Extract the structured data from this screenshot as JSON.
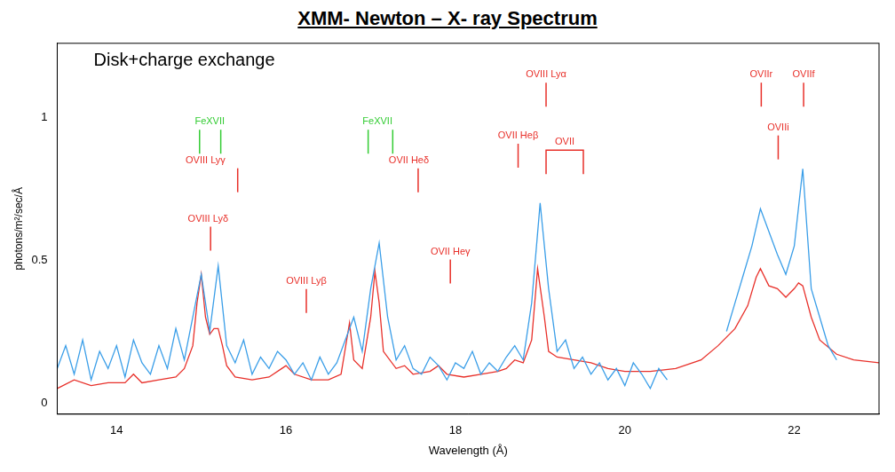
{
  "chart_data": {
    "type": "line",
    "title": "XMM- Newton – X- ray Spectrum",
    "x_label": "Wavelength (Å)",
    "y_label": "photons/m²/sec/Å",
    "xlim": [
      13.3,
      23.0
    ],
    "xticks": [
      14,
      16,
      18,
      20,
      22
    ],
    "ylim": [
      -0.04,
      1.26
    ],
    "yticks": [
      0,
      0.5,
      1
    ],
    "grid": false,
    "series": [
      {
        "color": "#3a9ee8",
        "marker": "none",
        "line_style": "solid",
        "x": [
          13.3,
          13.4,
          13.5,
          13.6,
          13.7,
          13.8,
          13.9,
          14.0,
          14.1,
          14.2,
          14.3,
          14.4,
          14.5,
          14.6,
          14.7,
          14.8,
          14.9,
          15.0,
          15.1,
          15.2,
          15.3,
          15.4,
          15.5,
          15.6,
          15.7,
          15.8,
          15.9,
          16.0,
          16.1,
          16.2,
          16.3,
          16.4,
          16.5,
          16.6,
          16.7,
          16.8,
          16.9,
          17.0,
          17.1,
          17.2,
          17.3,
          17.4,
          17.5,
          17.6,
          17.7,
          17.8,
          17.9,
          18.0,
          18.1,
          18.2,
          18.3,
          18.4,
          18.5,
          18.6,
          18.7,
          18.8,
          18.9,
          19.0,
          19.1,
          19.2,
          19.3,
          19.4,
          19.5,
          19.6,
          19.7,
          19.8,
          19.9,
          20.0,
          20.1,
          20.2,
          20.3,
          20.4,
          20.5,
          20.9,
          21.2,
          21.3,
          21.4,
          21.5,
          21.6,
          21.7,
          21.8,
          21.9,
          22.0,
          22.1,
          22.2,
          22.3,
          22.4,
          22.5
        ],
        "values": [
          0.12,
          0.2,
          0.1,
          0.22,
          0.08,
          0.18,
          0.12,
          0.2,
          0.09,
          0.22,
          0.14,
          0.1,
          0.2,
          0.12,
          0.26,
          0.15,
          0.3,
          0.45,
          0.25,
          0.48,
          0.2,
          0.14,
          0.22,
          0.1,
          0.16,
          0.12,
          0.18,
          0.15,
          0.1,
          0.14,
          0.08,
          0.16,
          0.1,
          0.14,
          0.22,
          0.3,
          0.18,
          0.4,
          0.56,
          0.3,
          0.15,
          0.2,
          0.12,
          0.1,
          0.16,
          0.13,
          0.08,
          0.14,
          0.12,
          0.18,
          0.1,
          0.14,
          0.11,
          0.16,
          0.2,
          0.15,
          0.35,
          0.7,
          0.4,
          0.18,
          0.22,
          0.12,
          0.16,
          0.1,
          0.14,
          0.08,
          0.12,
          0.06,
          0.14,
          0.1,
          0.05,
          0.12,
          0.08,
          null,
          0.25,
          0.35,
          0.45,
          0.55,
          0.68,
          0.6,
          0.52,
          0.45,
          0.55,
          0.82,
          0.4,
          0.3,
          0.2,
          0.15
        ]
      },
      {
        "color": "#e8302a",
        "marker": "none",
        "line_style": "solid",
        "x": [
          13.3,
          13.5,
          13.7,
          13.9,
          14.1,
          14.2,
          14.3,
          14.5,
          14.7,
          14.8,
          14.9,
          14.95,
          15.0,
          15.05,
          15.1,
          15.15,
          15.2,
          15.25,
          15.3,
          15.4,
          15.6,
          15.8,
          15.95,
          16.0,
          16.1,
          16.3,
          16.5,
          16.65,
          16.75,
          16.8,
          16.9,
          17.0,
          17.05,
          17.1,
          17.15,
          17.3,
          17.4,
          17.5,
          17.7,
          17.8,
          17.9,
          18.1,
          18.3,
          18.5,
          18.6,
          18.7,
          18.8,
          18.9,
          18.97,
          19.05,
          19.1,
          19.2,
          19.4,
          19.6,
          19.8,
          20.0,
          20.3,
          20.6,
          20.9,
          21.1,
          21.3,
          21.45,
          21.55,
          21.6,
          21.7,
          21.8,
          21.9,
          22.0,
          22.05,
          22.1,
          22.2,
          22.3,
          22.5,
          22.7,
          23.0
        ],
        "values": [
          0.05,
          0.08,
          0.06,
          0.07,
          0.07,
          0.1,
          0.07,
          0.08,
          0.09,
          0.12,
          0.2,
          0.35,
          0.45,
          0.3,
          0.24,
          0.26,
          0.26,
          0.2,
          0.13,
          0.09,
          0.08,
          0.09,
          0.12,
          0.13,
          0.1,
          0.08,
          0.08,
          0.1,
          0.28,
          0.15,
          0.12,
          0.3,
          0.46,
          0.35,
          0.18,
          0.12,
          0.13,
          0.1,
          0.11,
          0.13,
          0.1,
          0.09,
          0.1,
          0.11,
          0.12,
          0.15,
          0.14,
          0.22,
          0.47,
          0.3,
          0.18,
          0.16,
          0.15,
          0.14,
          0.12,
          0.11,
          0.11,
          0.12,
          0.15,
          0.2,
          0.26,
          0.34,
          0.44,
          0.47,
          0.41,
          0.4,
          0.37,
          0.4,
          0.42,
          0.41,
          0.3,
          0.22,
          0.17,
          0.15,
          0.14
        ]
      }
    ],
    "annotations": [
      {
        "text": "Disk+charge exchange",
        "x": 14.8,
        "y": 1.2,
        "color": "#000000",
        "marker": "none",
        "lines": []
      },
      {
        "text": "FeXVII",
        "x": 15.1,
        "y": 0.985,
        "color": "#33cc33",
        "marker": "tick",
        "lines": [
          14.98,
          15.23
        ]
      },
      {
        "text": "OVIII Lyγ",
        "x": 15.05,
        "y": 0.85,
        "color": "#e8302a",
        "marker": "tick",
        "lines": [
          15.43
        ]
      },
      {
        "text": "OVIII Lyδ",
        "x": 15.08,
        "y": 0.645,
        "color": "#e8302a",
        "marker": "tick",
        "lines": [
          15.11
        ]
      },
      {
        "text": "OVIII Lyβ",
        "x": 16.24,
        "y": 0.427,
        "color": "#e8302a",
        "marker": "tick",
        "lines": [
          16.24
        ]
      },
      {
        "text": "FeXVII",
        "x": 17.08,
        "y": 0.985,
        "color": "#33cc33",
        "marker": "tick",
        "lines": [
          16.97,
          17.26
        ]
      },
      {
        "text": "OVII Heδ",
        "x": 17.45,
        "y": 0.85,
        "color": "#e8302a",
        "marker": "tick",
        "lines": [
          17.56
        ]
      },
      {
        "text": "OVII Heγ",
        "x": 17.94,
        "y": 0.53,
        "color": "#e8302a",
        "marker": "tick",
        "lines": [
          17.94
        ]
      },
      {
        "text": "OVIII Lyα",
        "x": 19.07,
        "y": 1.15,
        "color": "#e8302a",
        "marker": "tick",
        "lines": [
          19.07
        ]
      },
      {
        "text": "OVII Heβ",
        "x": 18.74,
        "y": 0.936,
        "color": "#e8302a",
        "marker": "tick",
        "lines": [
          18.74
        ]
      },
      {
        "text": "OVII",
        "x": 19.29,
        "y": 0.913,
        "color": "#e8302a",
        "marker": "bracket",
        "lines": [
          19.07,
          19.51
        ]
      },
      {
        "text": "OVIIr",
        "x": 21.61,
        "y": 1.15,
        "color": "#e8302a",
        "marker": "tick",
        "lines": [
          21.61
        ]
      },
      {
        "text": "OVIIf",
        "x": 22.11,
        "y": 1.15,
        "color": "#e8302a",
        "marker": "tick",
        "lines": [
          22.11
        ]
      },
      {
        "text": "OVIIi",
        "x": 21.81,
        "y": 0.965,
        "color": "#e8302a",
        "marker": "tick",
        "lines": [
          21.81
        ]
      }
    ]
  }
}
